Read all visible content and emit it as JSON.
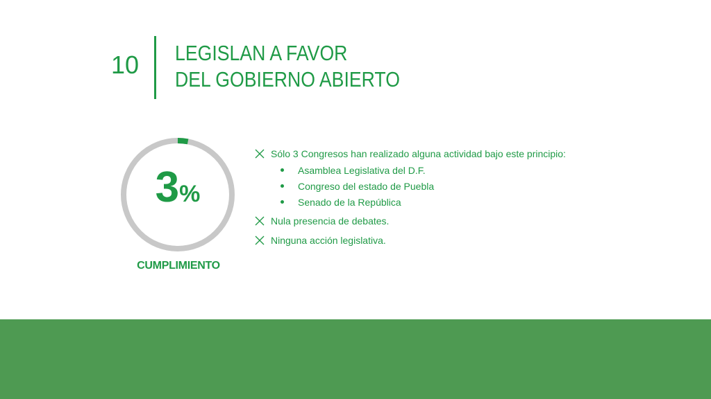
{
  "header": {
    "number": "10",
    "title_line1": "LEGISLAN A FAVOR",
    "title_line2": "DEL GOBIERNO ABIERTO"
  },
  "gauge": {
    "percent_value": "3",
    "percent_sign": "%",
    "progress": 0.03,
    "caption": "CUMPLIMIENTO",
    "colors": {
      "track": "#c8c8c8",
      "fill": "#1f9a46"
    }
  },
  "findings": {
    "item1": "Sólo 3 Congresos han realizado alguna actividad bajo este principio:",
    "sub_items": [
      "Asamblea Legislativa del D.F.",
      "Congreso del estado de Puebla",
      "Senado de la República"
    ],
    "item2": "Nula presencia de debates.",
    "item3": "Ninguna acción legislativa."
  },
  "colors": {
    "accent": "#1f9a46",
    "footer": "#4e9a52"
  }
}
